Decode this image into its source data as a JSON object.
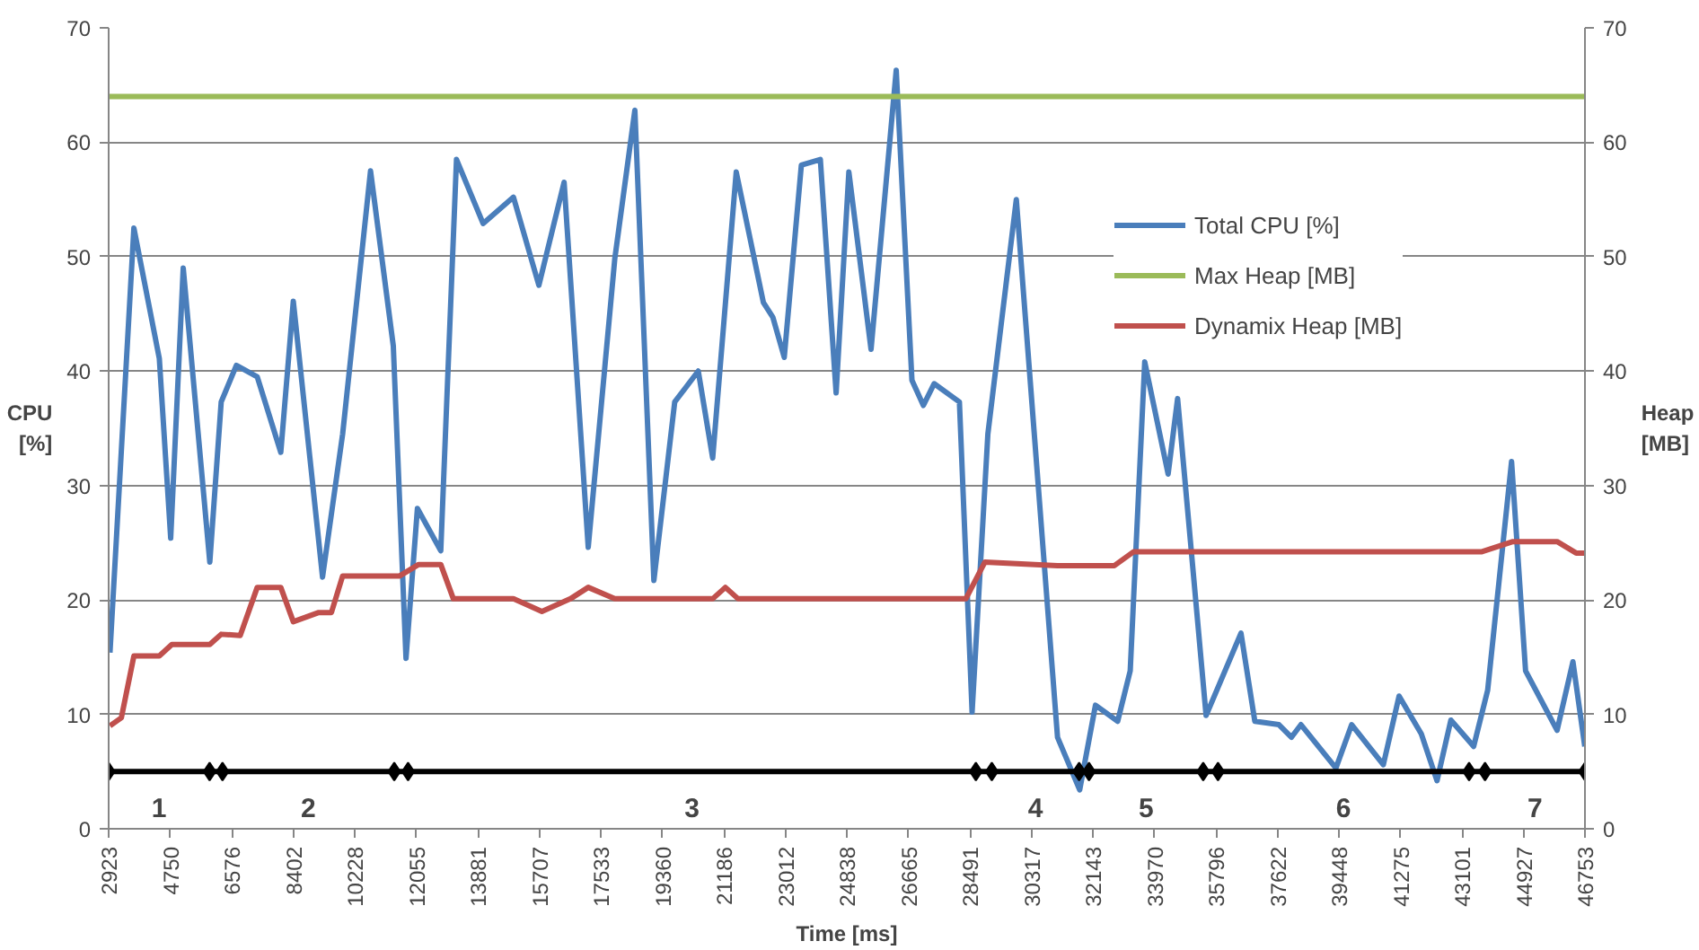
{
  "chart_data": {
    "type": "line",
    "xlabel": "Time [ms]",
    "ylabel": "CPU [%]",
    "y2label": "Heap [MB]",
    "xlim": [
      2923,
      46753
    ],
    "xticks": [
      2923,
      4750,
      6576,
      8402,
      10228,
      12055,
      13881,
      15707,
      17533,
      19360,
      21186,
      23012,
      24838,
      26665,
      28491,
      30317,
      32143,
      33970,
      35796,
      37622,
      39448,
      41275,
      43101,
      44927,
      46753
    ],
    "ylim": [
      0,
      70
    ],
    "yticks": [
      0,
      10,
      20,
      30,
      40,
      50,
      60,
      70
    ],
    "y2lim": [
      0,
      70
    ],
    "y2ticks": [
      0,
      10,
      20,
      30,
      40,
      50,
      60,
      70
    ],
    "grid": "y",
    "legend": "top right",
    "line_style": "solid",
    "series": [
      {
        "name": "Total CPU [%]",
        "color": "#4a7ebb",
        "x": [
          2962,
          3672,
          4427,
          4765,
          5137,
          5926,
          6264,
          6715,
          7334,
          8033,
          8405,
          9273,
          9870,
          10698,
          11374,
          11751,
          12090,
          12783,
          13250,
          14039,
          14941,
          15696,
          16445,
          17161,
          17949,
          18546,
          19110,
          19729,
          20428,
          20856,
          21555,
          22361,
          22643,
          22981,
          23488,
          24052,
          24521,
          24899,
          25558,
          26305,
          26772,
          27111,
          27430,
          28181,
          28558,
          29026,
          29871,
          31094,
          31752,
          32221,
          32880,
          33252,
          33683,
          34378,
          34659,
          35505,
          36541,
          36952,
          37667,
          38040,
          38322,
          39359,
          39827,
          40767,
          41235,
          41894,
          42361,
          42773,
          43449,
          43864,
          44574,
          44990,
          45926,
          46396,
          46748
        ],
        "values": [
          15.4,
          52.5,
          41.1,
          25.4,
          49.0,
          23.3,
          37.3,
          40.5,
          39.5,
          32.9,
          46.1,
          22.0,
          34.5,
          57.5,
          42.2,
          14.9,
          28.0,
          24.3,
          58.5,
          52.9,
          55.2,
          47.5,
          56.5,
          24.6,
          49.8,
          62.8,
          21.7,
          37.3,
          40.0,
          32.4,
          57.4,
          46.0,
          44.7,
          41.2,
          58.0,
          58.5,
          38.1,
          57.4,
          41.9,
          66.3,
          39.2,
          37.0,
          38.9,
          37.3,
          10.2,
          34.5,
          55.0,
          8.0,
          3.4,
          10.8,
          9.4,
          13.8,
          40.8,
          31.0,
          37.6,
          9.9,
          17.1,
          9.4,
          9.1,
          8.0,
          9.1,
          5.3,
          9.1,
          5.6,
          11.6,
          8.3,
          4.2,
          9.5,
          7.2,
          12.1,
          32.1,
          13.8,
          8.6,
          14.6,
          7.2
        ]
      },
      {
        "name": "Max Heap [MB]",
        "color": "#9bbb59",
        "x": [
          2923,
          46753
        ],
        "values": [
          64,
          64
        ]
      },
      {
        "name": "Dynamix Heap [MB]",
        "color": "#c0504d",
        "x": [
          2962,
          3300,
          3672,
          4427,
          4799,
          5926,
          6264,
          6829,
          7334,
          8033,
          8405,
          9160,
          9536,
          9870,
          11563,
          12127,
          12783,
          13157,
          14941,
          15786,
          16632,
          17161,
          17949,
          20856,
          21233,
          21611,
          28372,
          28935,
          31094,
          32221,
          32783,
          33347,
          43675,
          44615,
          45926,
          46491,
          46748
        ],
        "values": [
          9.0,
          9.7,
          15.1,
          15.1,
          16.1,
          16.1,
          17.0,
          16.9,
          21.1,
          21.1,
          18.1,
          18.9,
          18.9,
          22.1,
          22.1,
          23.1,
          23.1,
          20.1,
          20.1,
          19.0,
          20.1,
          21.1,
          20.1,
          20.1,
          21.1,
          20.1,
          20.1,
          23.3,
          23.0,
          23.0,
          23.0,
          24.2,
          24.2,
          25.1,
          25.1,
          24.1,
          24.1
        ]
      },
      {
        "color": "#000000",
        "marker": "diamond",
        "x": [
          2923,
          5920,
          6303,
          11402,
          11813,
          28670,
          29143,
          31735,
          32028,
          35419,
          35859,
          43313,
          43786,
          46753
        ],
        "values": [
          5,
          5,
          5,
          5,
          5,
          5,
          5,
          5,
          5,
          5,
          5,
          5,
          5,
          5
        ]
      }
    ],
    "annotations": [
      "1",
      "2",
      "3",
      "4",
      "5",
      "6",
      "7"
    ]
  }
}
